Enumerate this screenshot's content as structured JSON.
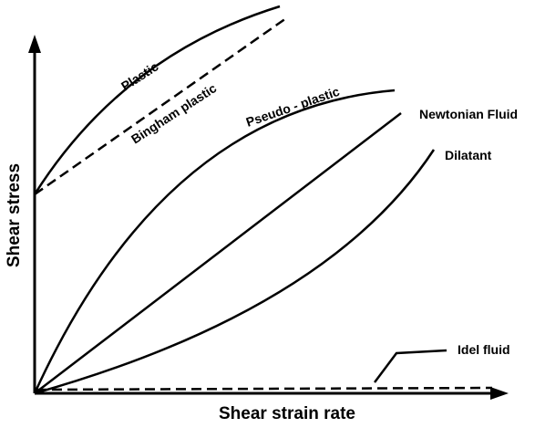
{
  "figure": {
    "x_axis_label": "Shear strain rate",
    "y_axis_label": "Shear stress",
    "curves": {
      "plastic": "Plastic",
      "bingham": "Bingham plastic",
      "pseudo": "Pseudo - plastic",
      "newtonian": "Newtonian Fluid",
      "dilatant": "Dilatant",
      "ideal": "Idel fluid"
    }
  },
  "colors": {
    "ink": "#000000",
    "background": "#ffffff"
  }
}
